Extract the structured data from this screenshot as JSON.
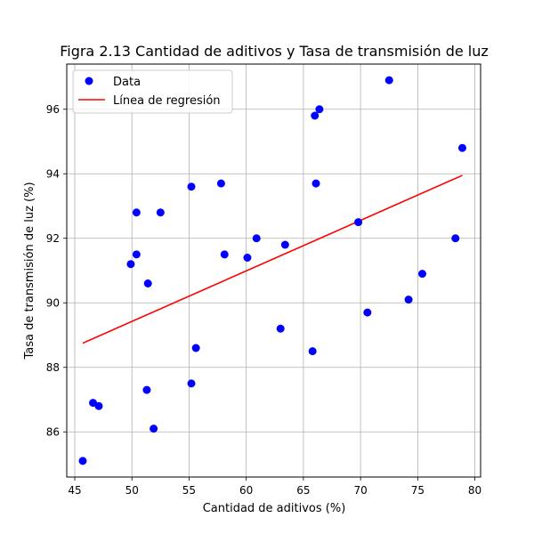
{
  "chart_data": {
    "type": "scatter",
    "title": "Figra 2.13 Cantidad de aditivos y Tasa de transmisión de luz",
    "xlabel": "Cantidad de aditivos (%)",
    "ylabel": "Tasa de transmisión de luz (%)",
    "xlim": [
      44.3,
      80.5
    ],
    "ylim": [
      84.6,
      97.4
    ],
    "xticks": [
      45,
      50,
      55,
      60,
      65,
      70,
      75,
      80
    ],
    "yticks": [
      86,
      88,
      90,
      92,
      94,
      96
    ],
    "grid": true,
    "legend_position": "top-left",
    "series": [
      {
        "name": "Data",
        "kind": "scatter",
        "color": "#0000ff",
        "points": [
          {
            "x": 45.7,
            "y": 85.1
          },
          {
            "x": 46.6,
            "y": 86.9
          },
          {
            "x": 47.1,
            "y": 86.8
          },
          {
            "x": 49.9,
            "y": 91.2
          },
          {
            "x": 50.4,
            "y": 91.5
          },
          {
            "x": 50.4,
            "y": 92.8
          },
          {
            "x": 51.3,
            "y": 87.3
          },
          {
            "x": 51.4,
            "y": 90.6
          },
          {
            "x": 51.9,
            "y": 86.1
          },
          {
            "x": 52.5,
            "y": 92.8
          },
          {
            "x": 55.2,
            "y": 93.6
          },
          {
            "x": 55.2,
            "y": 87.5
          },
          {
            "x": 55.6,
            "y": 88.6
          },
          {
            "x": 57.8,
            "y": 93.7
          },
          {
            "x": 58.1,
            "y": 91.5
          },
          {
            "x": 60.1,
            "y": 91.4
          },
          {
            "x": 60.9,
            "y": 92.0
          },
          {
            "x": 63.0,
            "y": 89.2
          },
          {
            "x": 63.4,
            "y": 91.8
          },
          {
            "x": 65.8,
            "y": 88.5
          },
          {
            "x": 66.0,
            "y": 95.8
          },
          {
            "x": 66.1,
            "y": 93.7
          },
          {
            "x": 66.4,
            "y": 96.0
          },
          {
            "x": 69.8,
            "y": 92.5
          },
          {
            "x": 70.6,
            "y": 89.7
          },
          {
            "x": 72.5,
            "y": 96.9
          },
          {
            "x": 74.2,
            "y": 90.1
          },
          {
            "x": 75.4,
            "y": 90.9
          },
          {
            "x": 78.3,
            "y": 92.0
          },
          {
            "x": 78.9,
            "y": 94.8
          }
        ]
      },
      {
        "name": "Línea de regresión",
        "kind": "line",
        "color": "#ff0000",
        "points": [
          {
            "x": 45.7,
            "y": 88.75
          },
          {
            "x": 78.9,
            "y": 93.95
          }
        ]
      }
    ]
  }
}
